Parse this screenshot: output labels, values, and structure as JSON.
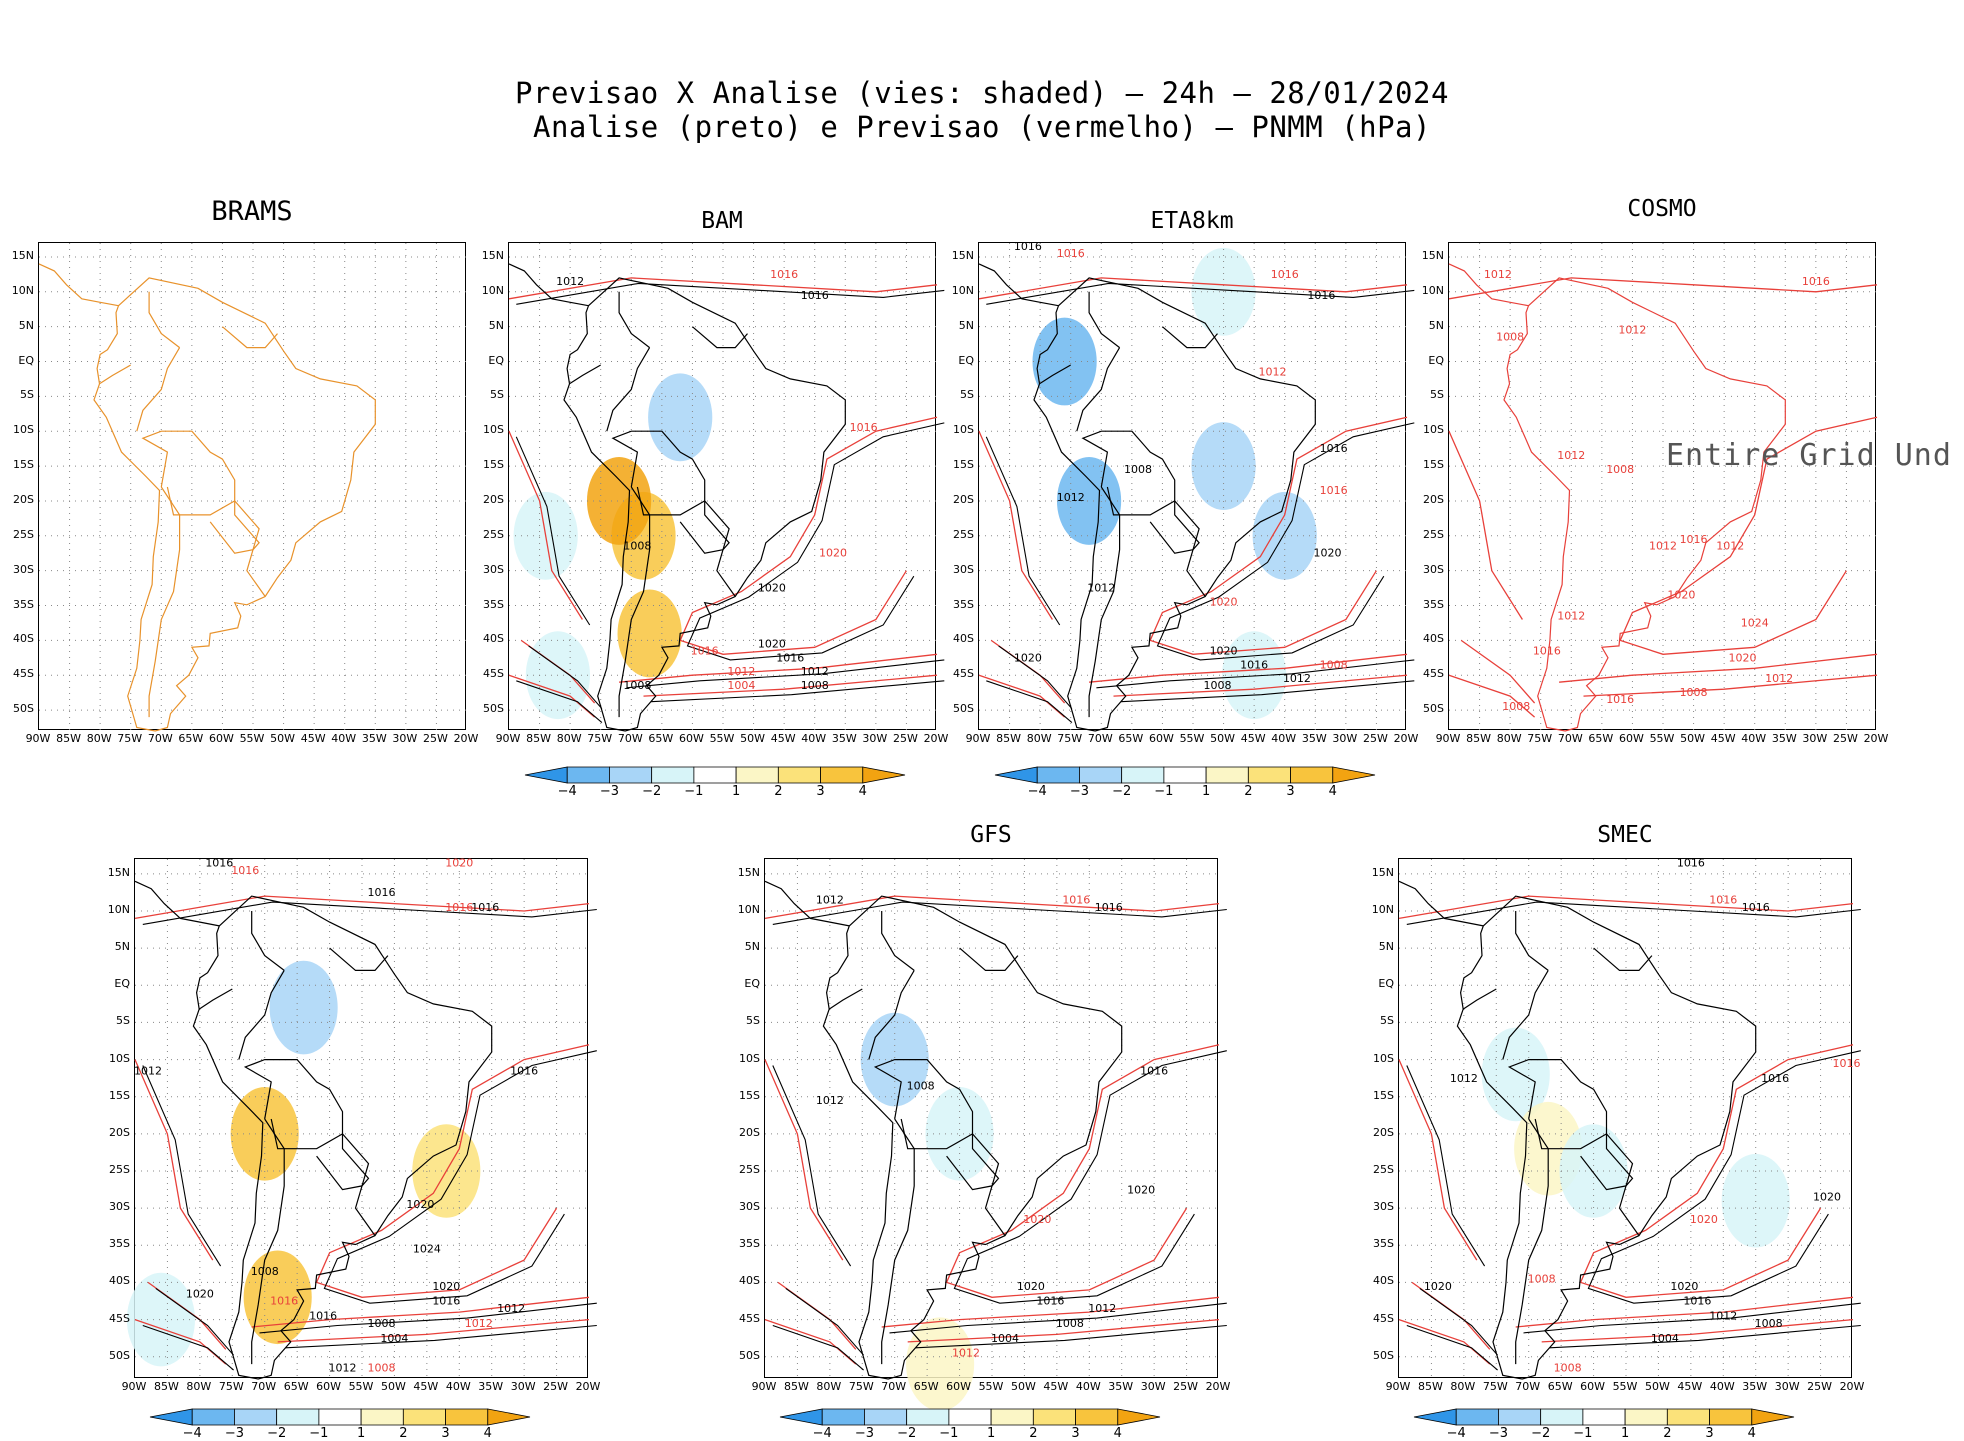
{
  "title": {
    "line1": "Previsao X Analise (vies: shaded) – 24h – 28/01/2024",
    "line2": "Analise (preto) e Previsao (vermelho) – PNMM (hPa)"
  },
  "colors": {
    "analysis": "#000000",
    "forecast": "#e8403a",
    "map_brams": "#e8922b",
    "neg4": "#2f95e8",
    "neg3": "#6cb7f0",
    "neg2": "#a8d5f7",
    "neg1": "#d7f4f8",
    "pos1": "#fbf6c6",
    "pos2": "#fbe27a",
    "pos3": "#f8c43d",
    "pos4": "#f2a311"
  },
  "y_ticks": [
    "15N",
    "10N",
    "5N",
    "EQ",
    "5S",
    "10S",
    "15S",
    "20S",
    "25S",
    "30S",
    "35S",
    "40S",
    "45S",
    "50S"
  ],
  "x_ticks": [
    "90W",
    "85W",
    "80W",
    "75W",
    "70W",
    "65W",
    "60W",
    "55W",
    "50W",
    "45W",
    "40W",
    "35W",
    "30W",
    "25W",
    "20W"
  ],
  "colorbar_labels": [
    "−4",
    "−3",
    "−2",
    "−1",
    "1",
    "2",
    "3",
    "4"
  ],
  "panels": [
    {
      "id": "brams",
      "title": "BRAMS",
      "has_bias": false,
      "has_colorbar": false,
      "message": ""
    },
    {
      "id": "bam",
      "title": "BAM",
      "has_bias": true,
      "has_colorbar": true,
      "message": ""
    },
    {
      "id": "eta8km",
      "title": "ETA8km",
      "has_bias": true,
      "has_colorbar": true,
      "message": ""
    },
    {
      "id": "cosmo",
      "title": "COSMO",
      "has_bias": false,
      "has_colorbar": false,
      "message": "Entire Grid Und"
    },
    {
      "id": "p5",
      "title": "",
      "has_bias": true,
      "has_colorbar": true,
      "message": ""
    },
    {
      "id": "gfs",
      "title": "GFS",
      "has_bias": true,
      "has_colorbar": true,
      "message": ""
    },
    {
      "id": "smec",
      "title": "SMEC",
      "has_bias": true,
      "has_colorbar": true,
      "message": ""
    }
  ],
  "chart_data": {
    "type": "heatmap",
    "variable": "PNMM (hPa)",
    "lon_range": [
      -90,
      -20
    ],
    "lat_range": [
      -53,
      17
    ],
    "bias_levels": [
      -4,
      -3,
      -2,
      -1,
      1,
      2,
      3,
      4
    ],
    "contour_levels_labeled": [
      1004,
      1008,
      1012,
      1016,
      1020,
      1024
    ],
    "contour_labels": [
      {
        "panel": "bam",
        "series": "forecast",
        "lon": -45,
        "lat": 12,
        "value": "1016"
      },
      {
        "panel": "bam",
        "series": "analysis",
        "lon": -40,
        "lat": 9,
        "value": "1016"
      },
      {
        "panel": "bam",
        "series": "analysis",
        "lon": -80,
        "lat": 11,
        "value": "1012"
      },
      {
        "panel": "bam",
        "series": "forecast",
        "lon": -32,
        "lat": -10,
        "value": "1016"
      },
      {
        "panel": "bam",
        "series": "forecast",
        "lon": -37,
        "lat": -28,
        "value": "1020"
      },
      {
        "panel": "bam",
        "series": "analysis",
        "lon": -47,
        "lat": -33,
        "value": "1020"
      },
      {
        "panel": "bam",
        "series": "analysis",
        "lon": -47,
        "lat": -41,
        "value": "1020"
      },
      {
        "panel": "bam",
        "series": "analysis",
        "lon": -44,
        "lat": -43,
        "value": "1016"
      },
      {
        "panel": "bam",
        "series": "analysis",
        "lon": -40,
        "lat": -45,
        "value": "1012"
      },
      {
        "panel": "bam",
        "series": "analysis",
        "lon": -40,
        "lat": -47,
        "value": "1008"
      },
      {
        "panel": "bam",
        "series": "forecast",
        "lon": -58,
        "lat": -42,
        "value": "1016"
      },
      {
        "panel": "bam",
        "series": "forecast",
        "lon": -52,
        "lat": -45,
        "value": "1012"
      },
      {
        "panel": "bam",
        "series": "forecast",
        "lon": -52,
        "lat": -47,
        "value": "1004"
      },
      {
        "panel": "bam",
        "series": "analysis",
        "lon": -69,
        "lat": -27,
        "value": "1008"
      },
      {
        "panel": "bam",
        "series": "analysis",
        "lon": -69,
        "lat": -47,
        "value": "1008"
      },
      {
        "panel": "eta8km",
        "series": "analysis",
        "lon": -82,
        "lat": 16,
        "value": "1016"
      },
      {
        "panel": "eta8km",
        "series": "forecast",
        "lon": -75,
        "lat": 15,
        "value": "1016"
      },
      {
        "panel": "eta8km",
        "series": "forecast",
        "lon": -40,
        "lat": 12,
        "value": "1016"
      },
      {
        "panel": "eta8km",
        "series": "analysis",
        "lon": -34,
        "lat": 9,
        "value": "1016"
      },
      {
        "panel": "eta8km",
        "series": "forecast",
        "lon": -42,
        "lat": -2,
        "value": "1012"
      },
      {
        "panel": "eta8km",
        "series": "analysis",
        "lon": -32,
        "lat": -13,
        "value": "1016"
      },
      {
        "panel": "eta8km",
        "series": "forecast",
        "lon": -32,
        "lat": -19,
        "value": "1016"
      },
      {
        "panel": "eta8km",
        "series": "analysis",
        "lon": -33,
        "lat": -28,
        "value": "1020"
      },
      {
        "panel": "eta8km",
        "series": "forecast",
        "lon": -50,
        "lat": -35,
        "value": "1020"
      },
      {
        "panel": "eta8km",
        "series": "analysis",
        "lon": -50,
        "lat": -42,
        "value": "1020"
      },
      {
        "panel": "eta8km",
        "series": "analysis",
        "lon": -45,
        "lat": -44,
        "value": "1016"
      },
      {
        "panel": "eta8km",
        "series": "analysis",
        "lon": -38,
        "lat": -46,
        "value": "1012"
      },
      {
        "panel": "eta8km",
        "series": "analysis",
        "lon": -51,
        "lat": -47,
        "value": "1008"
      },
      {
        "panel": "eta8km",
        "series": "forecast",
        "lon": -32,
        "lat": -44,
        "value": "1008"
      },
      {
        "panel": "eta8km",
        "series": "analysis",
        "lon": -75,
        "lat": -20,
        "value": "1012"
      },
      {
        "panel": "eta8km",
        "series": "analysis",
        "lon": -70,
        "lat": -33,
        "value": "1012"
      },
      {
        "panel": "eta8km",
        "series": "analysis",
        "lon": -64,
        "lat": -16,
        "value": "1008"
      },
      {
        "panel": "eta8km",
        "series": "analysis",
        "lon": -82,
        "lat": -43,
        "value": "1020"
      },
      {
        "panel": "cosmo",
        "series": "forecast",
        "lon": -82,
        "lat": 12,
        "value": "1012"
      },
      {
        "panel": "cosmo",
        "series": "forecast",
        "lon": -30,
        "lat": 11,
        "value": "1016"
      },
      {
        "panel": "cosmo",
        "series": "forecast",
        "lon": -80,
        "lat": 3,
        "value": "1008"
      },
      {
        "panel": "cosmo",
        "series": "forecast",
        "lon": -60,
        "lat": 4,
        "value": "1012"
      },
      {
        "panel": "cosmo",
        "series": "forecast",
        "lon": -70,
        "lat": -14,
        "value": "1012"
      },
      {
        "panel": "cosmo",
        "series": "forecast",
        "lon": -62,
        "lat": -16,
        "value": "1008"
      },
      {
        "panel": "cosmo",
        "series": "forecast",
        "lon": -55,
        "lat": -27,
        "value": "1012"
      },
      {
        "panel": "cosmo",
        "series": "forecast",
        "lon": -44,
        "lat": -27,
        "value": "1012"
      },
      {
        "panel": "cosmo",
        "series": "forecast",
        "lon": -50,
        "lat": -26,
        "value": "1016"
      },
      {
        "panel": "cosmo",
        "series": "forecast",
        "lon": -52,
        "lat": -34,
        "value": "1020"
      },
      {
        "panel": "cosmo",
        "series": "forecast",
        "lon": -40,
        "lat": -38,
        "value": "1024"
      },
      {
        "panel": "cosmo",
        "series": "forecast",
        "lon": -42,
        "lat": -43,
        "value": "1020"
      },
      {
        "panel": "cosmo",
        "series": "forecast",
        "lon": -36,
        "lat": -46,
        "value": "1012"
      },
      {
        "panel": "cosmo",
        "series": "forecast",
        "lon": -50,
        "lat": -48,
        "value": "1008"
      },
      {
        "panel": "cosmo",
        "series": "forecast",
        "lon": -62,
        "lat": -49,
        "value": "1016"
      },
      {
        "panel": "cosmo",
        "series": "forecast",
        "lon": -79,
        "lat": -50,
        "value": "1008"
      },
      {
        "panel": "cosmo",
        "series": "forecast",
        "lon": -74,
        "lat": -42,
        "value": "1016"
      },
      {
        "panel": "cosmo",
        "series": "forecast",
        "lon": -70,
        "lat": -37,
        "value": "1012"
      },
      {
        "panel": "p5",
        "series": "analysis",
        "lon": -77,
        "lat": 16,
        "value": "1016"
      },
      {
        "panel": "p5",
        "series": "forecast",
        "lon": -73,
        "lat": 15,
        "value": "1016"
      },
      {
        "panel": "p5",
        "series": "forecast",
        "lon": -40,
        "lat": 16,
        "value": "1020"
      },
      {
        "panel": "p5",
        "series": "analysis",
        "lon": -52,
        "lat": 12,
        "value": "1016"
      },
      {
        "panel": "p5",
        "series": "forecast",
        "lon": -40,
        "lat": 10,
        "value": "1016"
      },
      {
        "panel": "p5",
        "series": "analysis",
        "lon": -36,
        "lat": 10,
        "value": "1016"
      },
      {
        "panel": "p5",
        "series": "analysis",
        "lon": -88,
        "lat": -12,
        "value": "1012"
      },
      {
        "panel": "p5",
        "series": "analysis",
        "lon": -30,
        "lat": -12,
        "value": "1016"
      },
      {
        "panel": "p5",
        "series": "analysis",
        "lon": -46,
        "lat": -30,
        "value": "1020"
      },
      {
        "panel": "p5",
        "series": "analysis",
        "lon": -45,
        "lat": -36,
        "value": "1024"
      },
      {
        "panel": "p5",
        "series": "analysis",
        "lon": -42,
        "lat": -41,
        "value": "1020"
      },
      {
        "panel": "p5",
        "series": "analysis",
        "lon": -42,
        "lat": -43,
        "value": "1016"
      },
      {
        "panel": "p5",
        "series": "analysis",
        "lon": -32,
        "lat": -44,
        "value": "1012"
      },
      {
        "panel": "p5",
        "series": "analysis",
        "lon": -52,
        "lat": -46,
        "value": "1008"
      },
      {
        "panel": "p5",
        "series": "analysis",
        "lon": -50,
        "lat": -48,
        "value": "1004"
      },
      {
        "panel": "p5",
        "series": "forecast",
        "lon": -37,
        "lat": -46,
        "value": "1012"
      },
      {
        "panel": "p5",
        "series": "forecast",
        "lon": -52,
        "lat": -52,
        "value": "1008"
      },
      {
        "panel": "p5",
        "series": "analysis",
        "lon": -58,
        "lat": -52,
        "value": "1012"
      },
      {
        "panel": "p5",
        "series": "analysis",
        "lon": -61,
        "lat": -45,
        "value": "1016"
      },
      {
        "panel": "p5",
        "series": "forecast",
        "lon": -67,
        "lat": -43,
        "value": "1016"
      },
      {
        "panel": "p5",
        "series": "analysis",
        "lon": -80,
        "lat": -42,
        "value": "1020"
      },
      {
        "panel": "p5",
        "series": "analysis",
        "lon": -70,
        "lat": -39,
        "value": "1008"
      },
      {
        "panel": "gfs",
        "series": "analysis",
        "lon": -80,
        "lat": 11,
        "value": "1012"
      },
      {
        "panel": "gfs",
        "series": "forecast",
        "lon": -42,
        "lat": 11,
        "value": "1016"
      },
      {
        "panel": "gfs",
        "series": "analysis",
        "lon": -37,
        "lat": 10,
        "value": "1016"
      },
      {
        "panel": "gfs",
        "series": "analysis",
        "lon": -30,
        "lat": -12,
        "value": "1016"
      },
      {
        "panel": "gfs",
        "series": "analysis",
        "lon": -32,
        "lat": -28,
        "value": "1020"
      },
      {
        "panel": "gfs",
        "series": "forecast",
        "lon": -48,
        "lat": -32,
        "value": "1020"
      },
      {
        "panel": "gfs",
        "series": "analysis",
        "lon": -49,
        "lat": -41,
        "value": "1020"
      },
      {
        "panel": "gfs",
        "series": "analysis",
        "lon": -46,
        "lat": -43,
        "value": "1016"
      },
      {
        "panel": "gfs",
        "series": "analysis",
        "lon": -38,
        "lat": -44,
        "value": "1012"
      },
      {
        "panel": "gfs",
        "series": "analysis",
        "lon": -43,
        "lat": -46,
        "value": "1008"
      },
      {
        "panel": "gfs",
        "series": "analysis",
        "lon": -53,
        "lat": -48,
        "value": "1004"
      },
      {
        "panel": "gfs",
        "series": "forecast",
        "lon": -59,
        "lat": -50,
        "value": "1012"
      },
      {
        "panel": "gfs",
        "series": "analysis",
        "lon": -66,
        "lat": -14,
        "value": "1008"
      },
      {
        "panel": "gfs",
        "series": "analysis",
        "lon": -80,
        "lat": -16,
        "value": "1012"
      },
      {
        "panel": "smec",
        "series": "analysis",
        "lon": -45,
        "lat": 16,
        "value": "1016"
      },
      {
        "panel": "smec",
        "series": "forecast",
        "lon": -40,
        "lat": 11,
        "value": "1016"
      },
      {
        "panel": "smec",
        "series": "analysis",
        "lon": -35,
        "lat": 10,
        "value": "1016"
      },
      {
        "panel": "smec",
        "series": "analysis",
        "lon": -80,
        "lat": -13,
        "value": "1012"
      },
      {
        "panel": "smec",
        "series": "forecast",
        "lon": -21,
        "lat": -11,
        "value": "1016"
      },
      {
        "panel": "smec",
        "series": "analysis",
        "lon": -32,
        "lat": -13,
        "value": "1016"
      },
      {
        "panel": "smec",
        "series": "analysis",
        "lon": -24,
        "lat": -29,
        "value": "1020"
      },
      {
        "panel": "smec",
        "series": "forecast",
        "lon": -43,
        "lat": -32,
        "value": "1020"
      },
      {
        "panel": "smec",
        "series": "analysis",
        "lon": -46,
        "lat": -41,
        "value": "1020"
      },
      {
        "panel": "smec",
        "series": "analysis",
        "lon": -44,
        "lat": -43,
        "value": "1016"
      },
      {
        "panel": "smec",
        "series": "analysis",
        "lon": -40,
        "lat": -45,
        "value": "1012"
      },
      {
        "panel": "smec",
        "series": "analysis",
        "lon": -33,
        "lat": -46,
        "value": "1008"
      },
      {
        "panel": "smec",
        "series": "analysis",
        "lon": -49,
        "lat": -48,
        "value": "1004"
      },
      {
        "panel": "smec",
        "series": "forecast",
        "lon": -64,
        "lat": -52,
        "value": "1008"
      },
      {
        "panel": "smec",
        "series": "analysis",
        "lon": -84,
        "lat": -41,
        "value": "1020"
      },
      {
        "panel": "smec",
        "series": "forecast",
        "lon": -68,
        "lat": -40,
        "value": "1008"
      }
    ],
    "bias_regions": [
      {
        "panel": "bam",
        "lon": -68,
        "lat": -25,
        "bias": 3
      },
      {
        "panel": "bam",
        "lon": -67,
        "lat": -39,
        "bias": 3
      },
      {
        "panel": "bam",
        "lon": -72,
        "lat": -20,
        "bias": 4
      },
      {
        "panel": "bam",
        "lon": -62,
        "lat": -8,
        "bias": -2
      },
      {
        "panel": "bam",
        "lon": -84,
        "lat": -25,
        "bias": -1
      },
      {
        "panel": "bam",
        "lon": -82,
        "lat": -45,
        "bias": -1
      },
      {
        "panel": "eta8km",
        "lon": -76,
        "lat": 0,
        "bias": -3
      },
      {
        "panel": "eta8km",
        "lon": -72,
        "lat": -20,
        "bias": -3
      },
      {
        "panel": "eta8km",
        "lon": -50,
        "lat": -15,
        "bias": -2
      },
      {
        "panel": "eta8km",
        "lon": -40,
        "lat": -25,
        "bias": -2
      },
      {
        "panel": "eta8km",
        "lon": -50,
        "lat": 10,
        "bias": -1
      },
      {
        "panel": "eta8km",
        "lon": -45,
        "lat": -45,
        "bias": -1
      },
      {
        "panel": "p5",
        "lon": -70,
        "lat": -20,
        "bias": 3
      },
      {
        "panel": "p5",
        "lon": -68,
        "lat": -42,
        "bias": 3
      },
      {
        "panel": "p5",
        "lon": -42,
        "lat": -25,
        "bias": 2
      },
      {
        "panel": "p5",
        "lon": -64,
        "lat": -3,
        "bias": -2
      },
      {
        "panel": "p5",
        "lon": -86,
        "lat": -45,
        "bias": -1
      },
      {
        "panel": "gfs",
        "lon": -60,
        "lat": -20,
        "bias": -1
      },
      {
        "panel": "gfs",
        "lon": -70,
        "lat": -10,
        "bias": -2
      },
      {
        "panel": "gfs",
        "lon": -63,
        "lat": -51,
        "bias": 1
      },
      {
        "panel": "smec",
        "lon": -72,
        "lat": -12,
        "bias": -1
      },
      {
        "panel": "smec",
        "lon": -67,
        "lat": -22,
        "bias": 1
      },
      {
        "panel": "smec",
        "lon": -60,
        "lat": -25,
        "bias": -1
      },
      {
        "panel": "smec",
        "lon": -35,
        "lat": -29,
        "bias": -1
      }
    ]
  }
}
